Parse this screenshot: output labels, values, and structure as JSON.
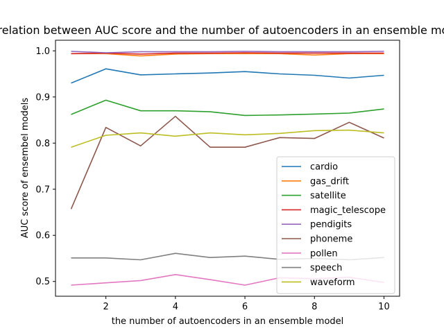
{
  "chart_data": {
    "type": "line",
    "title": "Correlation between AUC score and the number of autoencoders in an ensemble model",
    "xlabel": "the number of autoencoders in an ensemble model",
    "ylabel": "AUC score of ensembel models",
    "x": [
      1,
      2,
      3,
      4,
      5,
      6,
      7,
      8,
      9,
      10
    ],
    "xlim": [
      0.55,
      10.45
    ],
    "ylim": [
      0.468,
      1.023
    ],
    "xticks": [
      2,
      4,
      6,
      8,
      10
    ],
    "yticks": [
      0.5,
      0.6,
      0.7,
      0.8,
      0.9,
      1.0
    ],
    "ytick_labels": [
      "0.5",
      "0.6",
      "0.7",
      "0.8",
      "0.9",
      "1.0"
    ],
    "grid": false,
    "legend_position": "lower-right",
    "series": [
      {
        "name": "cardio",
        "color": "#1f77b4",
        "values": [
          0.93,
          0.961,
          0.948,
          0.95,
          0.952,
          0.955,
          0.95,
          0.947,
          0.941,
          0.947
        ]
      },
      {
        "name": "gas_drift",
        "color": "#ff7f0e",
        "values": [
          0.994,
          0.994,
          0.989,
          0.993,
          0.994,
          0.994,
          0.994,
          0.991,
          0.994,
          0.994
        ]
      },
      {
        "name": "satellite",
        "color": "#2ca02c",
        "values": [
          0.862,
          0.893,
          0.87,
          0.87,
          0.868,
          0.86,
          0.861,
          0.863,
          0.865,
          0.874
        ]
      },
      {
        "name": "magic_telescope",
        "color": "#d62728",
        "values": [
          0.994,
          0.995,
          0.993,
          0.995,
          0.995,
          0.996,
          0.995,
          0.995,
          0.995,
          0.995
        ]
      },
      {
        "name": "pendigits",
        "color": "#9467bd",
        "values": [
          0.999,
          0.996,
          0.998,
          0.998,
          0.998,
          0.999,
          0.998,
          0.998,
          0.998,
          0.999
        ]
      },
      {
        "name": "phoneme",
        "color": "#8c564b",
        "values": [
          0.657,
          0.834,
          0.794,
          0.858,
          0.791,
          0.791,
          0.812,
          0.81,
          0.845,
          0.811
        ]
      },
      {
        "name": "pollen",
        "color": "#e377c2",
        "values": [
          0.492,
          0.497,
          0.502,
          0.515,
          0.504,
          0.492,
          0.508,
          0.506,
          0.509,
          0.498
        ]
      },
      {
        "name": "speech",
        "color": "#7f7f7f",
        "values": [
          0.551,
          0.551,
          0.547,
          0.561,
          0.552,
          0.555,
          0.548,
          0.55,
          0.547,
          0.552
        ]
      },
      {
        "name": "waveform",
        "color": "#bcbd22",
        "values": [
          0.791,
          0.817,
          0.822,
          0.815,
          0.822,
          0.818,
          0.821,
          0.827,
          0.828,
          0.822
        ]
      }
    ]
  }
}
